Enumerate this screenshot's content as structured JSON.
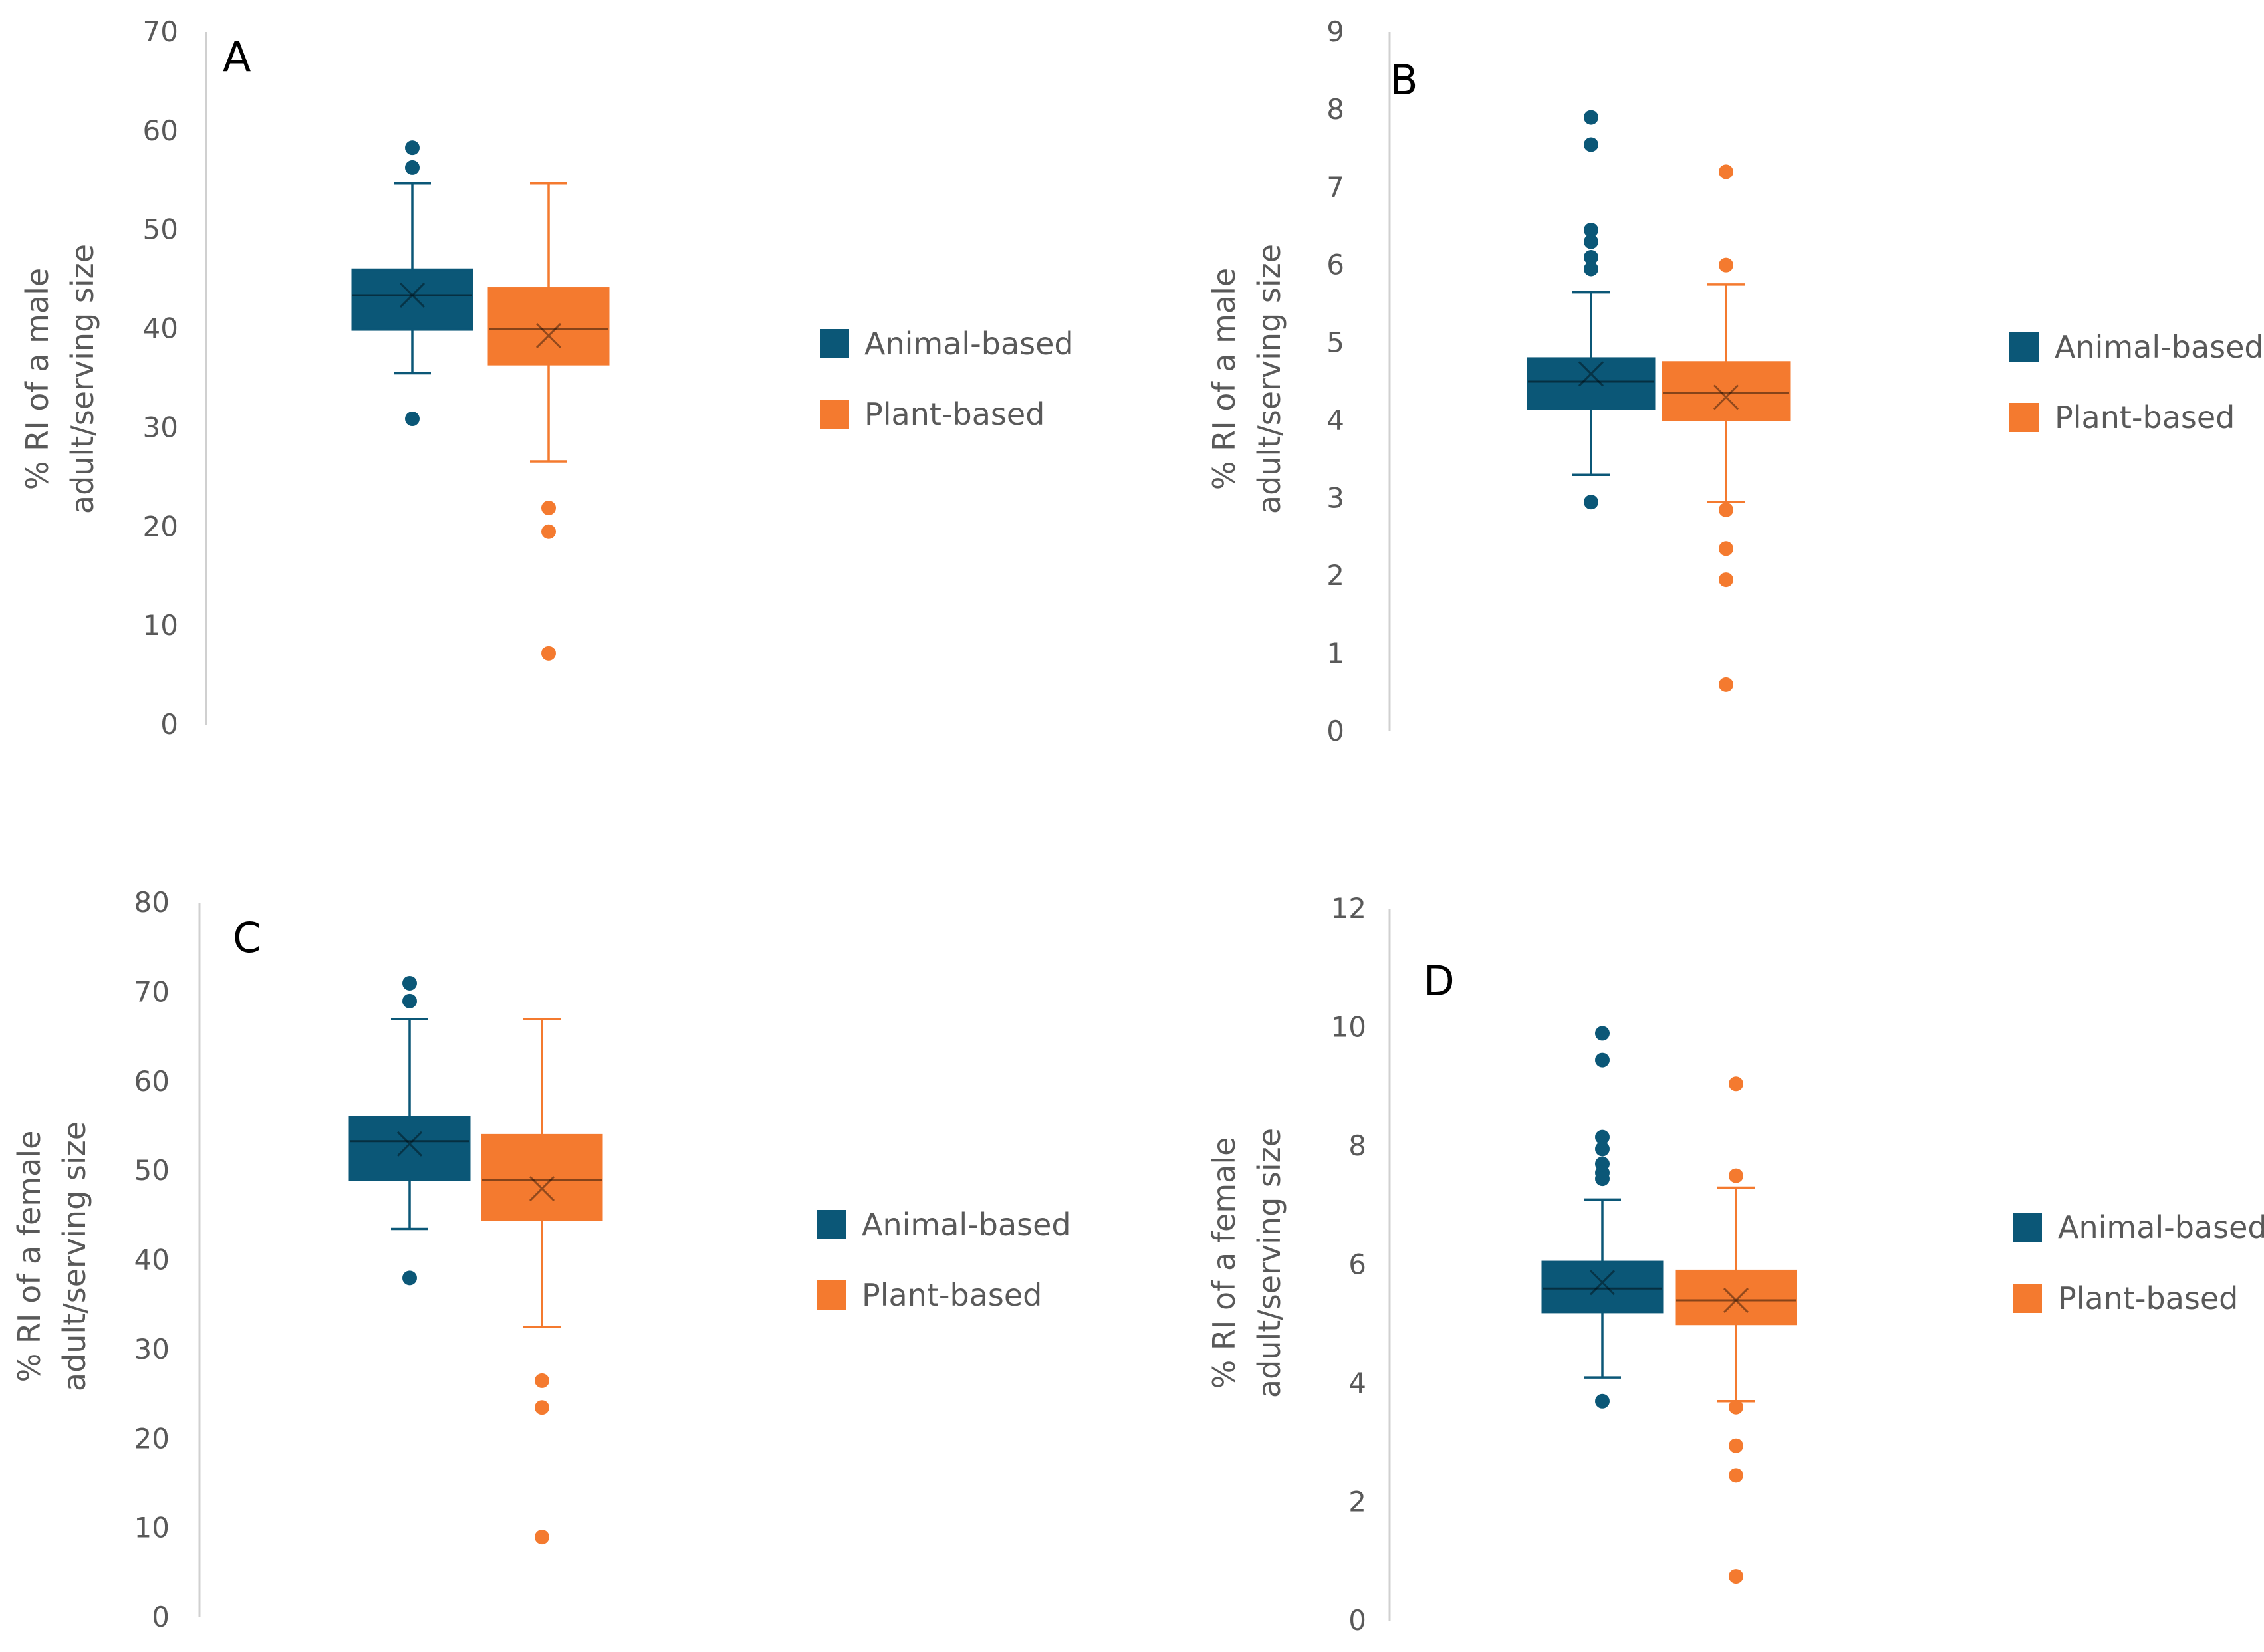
{
  "colors": {
    "animal": "#0b5777",
    "plant": "#f47a2f",
    "axis": "#d0d0d0",
    "tick_text": "#595959"
  },
  "chart_data": [
    {
      "type": "boxplot",
      "panel_label": "A",
      "ylabel": [
        "% RI of a male",
        "adult/serving size"
      ],
      "ylim": [
        0,
        70
      ],
      "yticks": [
        "0",
        "10",
        "20",
        "30",
        "40",
        "50",
        "60",
        "70"
      ],
      "legend": [
        "Animal-based",
        "Plant-based"
      ],
      "series": [
        {
          "name": "Animal-based",
          "q1": 39.9,
          "median": 43.4,
          "q3": 46.0,
          "mean": 43.4,
          "whisker_low": 35.5,
          "whisker_high": 54.7,
          "outliers": [
            58.3,
            56.3,
            30.9
          ]
        },
        {
          "name": "Plant-based",
          "q1": 36.4,
          "median": 40.0,
          "q3": 44.1,
          "mean": 39.3,
          "whisker_low": 26.6,
          "whisker_high": 54.7,
          "outliers": [
            21.9,
            19.5,
            7.2
          ]
        }
      ]
    },
    {
      "type": "boxplot",
      "panel_label": "B",
      "ylabel": [
        "% RI of a male",
        "adult/serving size"
      ],
      "ylim": [
        0,
        9
      ],
      "yticks": [
        "0",
        "1",
        "2",
        "3",
        "4",
        "5",
        "6",
        "7",
        "8",
        "9"
      ],
      "legend": [
        "Animal-based",
        "Plant-based"
      ],
      "series": [
        {
          "name": "Animal-based",
          "q1": 4.15,
          "median": 4.5,
          "q3": 4.8,
          "mean": 4.6,
          "whisker_low": 3.3,
          "whisker_high": 5.65,
          "outliers": [
            7.9,
            7.55,
            6.45,
            6.3,
            6.1,
            5.95,
            2.95
          ]
        },
        {
          "name": "Plant-based",
          "q1": 4.0,
          "median": 4.35,
          "q3": 4.75,
          "mean": 4.3,
          "whisker_low": 2.95,
          "whisker_high": 5.75,
          "outliers": [
            7.2,
            6.0,
            2.85,
            2.35,
            1.95,
            0.6
          ]
        }
      ]
    },
    {
      "type": "boxplot",
      "panel_label": "C",
      "ylabel": [
        "% RI of a female",
        "adult/serving size"
      ],
      "ylim": [
        0,
        80
      ],
      "yticks": [
        "0",
        "10",
        "20",
        "30",
        "40",
        "50",
        "60",
        "70",
        "80"
      ],
      "legend": [
        "Animal-based",
        "Plant-based"
      ],
      "series": [
        {
          "name": "Animal-based",
          "q1": 49.0,
          "median": 53.3,
          "q3": 56.0,
          "mean": 53.0,
          "whisker_low": 43.5,
          "whisker_high": 67.0,
          "outliers": [
            71.0,
            69.0,
            38.0
          ]
        },
        {
          "name": "Plant-based",
          "q1": 44.5,
          "median": 49.0,
          "q3": 54.0,
          "mean": 48.0,
          "whisker_low": 32.5,
          "whisker_high": 67.0,
          "outliers": [
            26.5,
            23.5,
            9.0
          ]
        }
      ]
    },
    {
      "type": "boxplot",
      "panel_label": "D",
      "ylabel": [
        "% RI of a female",
        "adult/serving size"
      ],
      "ylim": [
        0,
        12
      ],
      "yticks": [
        "0",
        "2",
        "4",
        "6",
        "8",
        "10",
        "12"
      ],
      "legend": [
        "Animal-based",
        "Plant-based"
      ],
      "series": [
        {
          "name": "Animal-based",
          "q1": 5.2,
          "median": 5.6,
          "q3": 6.05,
          "mean": 5.7,
          "whisker_low": 4.1,
          "whisker_high": 7.1,
          "outliers": [
            9.9,
            9.45,
            8.15,
            7.95,
            7.7,
            7.55,
            7.45,
            3.7
          ]
        },
        {
          "name": "Plant-based",
          "q1": 5.0,
          "median": 5.4,
          "q3": 5.9,
          "mean": 5.4,
          "whisker_low": 3.7,
          "whisker_high": 7.3,
          "outliers": [
            9.05,
            7.5,
            3.6,
            2.95,
            2.45,
            0.75
          ]
        }
      ]
    }
  ]
}
